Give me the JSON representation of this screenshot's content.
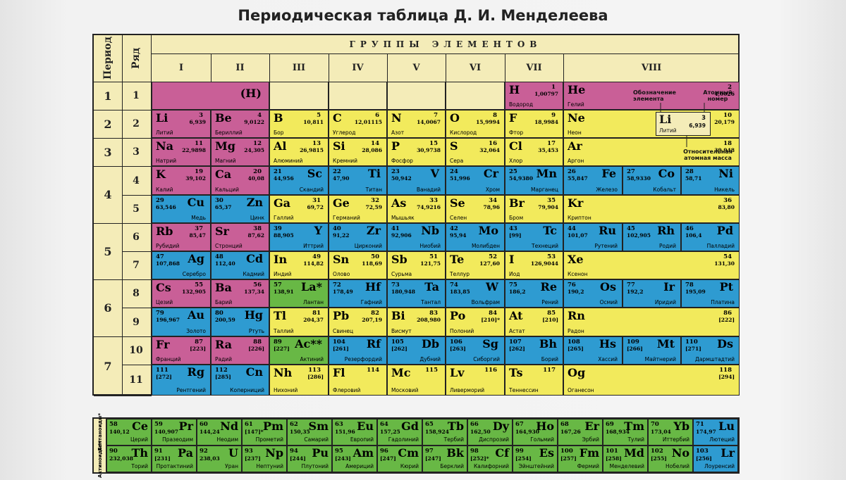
{
  "title": "Периодическая таблица Д. И. Менделеева",
  "headers": {
    "period": "Период",
    "row": "Ряд",
    "groups_title": "ГРУППЫ ЭЛЕМЕНТОВ",
    "groups": [
      "I",
      "II",
      "III",
      "IV",
      "V",
      "VI",
      "VII",
      "VIII"
    ]
  },
  "periods": [
    "1",
    "2",
    "3",
    "4",
    "5",
    "6",
    "7"
  ],
  "rows": [
    "1",
    "2",
    "3",
    "4",
    "5",
    "6",
    "7",
    "8",
    "9",
    "10",
    "11"
  ],
  "elements": [
    [
      {
        "sym": "(H)",
        "num": "",
        "mass": "",
        "name": "",
        "cat": "s",
        "al": "R"
      },
      {
        "sym": "",
        "num": "",
        "mass": "",
        "name": "",
        "cat": "e",
        "al": "L"
      },
      {
        "sym": "",
        "num": "",
        "mass": "",
        "name": "",
        "cat": "e",
        "al": "L"
      },
      {
        "sym": "",
        "num": "",
        "mass": "",
        "name": "",
        "cat": "e",
        "al": "L"
      },
      {
        "sym": "",
        "num": "",
        "mass": "",
        "name": "",
        "cat": "e",
        "al": "L"
      },
      {
        "sym": "",
        "num": "",
        "mass": "",
        "name": "",
        "cat": "e",
        "al": "L"
      },
      {
        "sym": "H",
        "num": "1",
        "mass": "1,00797",
        "name": "Водород",
        "cat": "s",
        "al": "L"
      },
      {
        "sym": "He",
        "num": "2",
        "mass": "4,0026",
        "name": "Гелий",
        "cat": "s",
        "al": "L"
      }
    ],
    [
      {
        "sym": "Li",
        "num": "3",
        "mass": "6,939",
        "name": "Литий",
        "cat": "s",
        "al": "L"
      },
      {
        "sym": "Be",
        "num": "4",
        "mass": "9,0122",
        "name": "Бериллий",
        "cat": "s",
        "al": "L"
      },
      {
        "sym": "B",
        "num": "5",
        "mass": "10,811",
        "name": "Бор",
        "cat": "p",
        "al": "L"
      },
      {
        "sym": "C",
        "num": "6",
        "mass": "12,01115",
        "name": "Углерод",
        "cat": "p",
        "al": "L"
      },
      {
        "sym": "N",
        "num": "7",
        "mass": "14,0067",
        "name": "Азот",
        "cat": "p",
        "al": "L"
      },
      {
        "sym": "O",
        "num": "8",
        "mass": "15,9994",
        "name": "Кислород",
        "cat": "p",
        "al": "L"
      },
      {
        "sym": "F",
        "num": "9",
        "mass": "18,9984",
        "name": "Фтор",
        "cat": "p",
        "al": "L"
      },
      {
        "sym": "Ne",
        "num": "10",
        "mass": "20,179",
        "name": "Неон",
        "cat": "p",
        "al": "L"
      }
    ],
    [
      {
        "sym": "Na",
        "num": "11",
        "mass": "22,9898",
        "name": "Натрий",
        "cat": "s",
        "al": "L"
      },
      {
        "sym": "Mg",
        "num": "12",
        "mass": "24,305",
        "name": "Магний",
        "cat": "s",
        "al": "L"
      },
      {
        "sym": "Al",
        "num": "13",
        "mass": "26,9815",
        "name": "Алюминий",
        "cat": "p",
        "al": "L"
      },
      {
        "sym": "Si",
        "num": "14",
        "mass": "28,086",
        "name": "Кремний",
        "cat": "p",
        "al": "L"
      },
      {
        "sym": "P",
        "num": "15",
        "mass": "30,9738",
        "name": "Фосфор",
        "cat": "p",
        "al": "L"
      },
      {
        "sym": "S",
        "num": "16",
        "mass": "32,064",
        "name": "Сера",
        "cat": "p",
        "al": "L"
      },
      {
        "sym": "Cl",
        "num": "17",
        "mass": "35,453",
        "name": "Хлор",
        "cat": "p",
        "al": "L"
      },
      {
        "sym": "Ar",
        "num": "18",
        "mass": "39,948",
        "name": "Аргон",
        "cat": "p",
        "al": "L"
      }
    ],
    [
      {
        "sym": "K",
        "num": "19",
        "mass": "39,102",
        "name": "Калий",
        "cat": "s",
        "al": "L"
      },
      {
        "sym": "Ca",
        "num": "20",
        "mass": "40,08",
        "name": "Кальций",
        "cat": "s",
        "al": "L"
      },
      {
        "sym": "Sc",
        "num": "21",
        "mass": "44,956",
        "name": "Скандий",
        "cat": "d",
        "al": "R"
      },
      {
        "sym": "Ti",
        "num": "22",
        "mass": "47,90",
        "name": "Титан",
        "cat": "d",
        "al": "R"
      },
      {
        "sym": "V",
        "num": "23",
        "mass": "50,942",
        "name": "Ванадий",
        "cat": "d",
        "al": "R"
      },
      {
        "sym": "Cr",
        "num": "24",
        "mass": "51,996",
        "name": "Хром",
        "cat": "d",
        "al": "R"
      },
      {
        "sym": "Mn",
        "num": "25",
        "mass": "54,9380",
        "name": "Марганец",
        "cat": "d",
        "al": "R"
      },
      {
        "sym": "Fe",
        "num": "26",
        "mass": "55,847",
        "name": "Железо",
        "cat": "d",
        "al": "R"
      },
      {
        "sym": "Co",
        "num": "27",
        "mass": "58,9330",
        "name": "Кобальт",
        "cat": "d",
        "al": "R"
      },
      {
        "sym": "Ni",
        "num": "28",
        "mass": "58,71",
        "name": "Никель",
        "cat": "d",
        "al": "R"
      }
    ],
    [
      {
        "sym": "Cu",
        "num": "29",
        "mass": "63,546",
        "name": "Медь",
        "cat": "d",
        "al": "R"
      },
      {
        "sym": "Zn",
        "num": "30",
        "mass": "65,37",
        "name": "Цинк",
        "cat": "d",
        "al": "R"
      },
      {
        "sym": "Ga",
        "num": "31",
        "mass": "69,72",
        "name": "Галлий",
        "cat": "p",
        "al": "L"
      },
      {
        "sym": "Ge",
        "num": "32",
        "mass": "72,59",
        "name": "Германий",
        "cat": "p",
        "al": "L"
      },
      {
        "sym": "As",
        "num": "33",
        "mass": "74,9216",
        "name": "Мышьяк",
        "cat": "p",
        "al": "L"
      },
      {
        "sym": "Se",
        "num": "34",
        "mass": "78,96",
        "name": "Селен",
        "cat": "p",
        "al": "L"
      },
      {
        "sym": "Br",
        "num": "35",
        "mass": "79,904",
        "name": "Бром",
        "cat": "p",
        "al": "L"
      },
      {
        "sym": "Kr",
        "num": "36",
        "mass": "83,80",
        "name": "Криптон",
        "cat": "p",
        "al": "L"
      }
    ],
    [
      {
        "sym": "Rb",
        "num": "37",
        "mass": "85,47",
        "name": "Рубидий",
        "cat": "s",
        "al": "L"
      },
      {
        "sym": "Sr",
        "num": "38",
        "mass": "87,62",
        "name": "Стронций",
        "cat": "s",
        "al": "L"
      },
      {
        "sym": "Y",
        "num": "39",
        "mass": "88,905",
        "name": "Иттрий",
        "cat": "d",
        "al": "R"
      },
      {
        "sym": "Zr",
        "num": "40",
        "mass": "91,22",
        "name": "Цирконий",
        "cat": "d",
        "al": "R"
      },
      {
        "sym": "Nb",
        "num": "41",
        "mass": "92,906",
        "name": "Ниобий",
        "cat": "d",
        "al": "R"
      },
      {
        "sym": "Mo",
        "num": "42",
        "mass": "95,94",
        "name": "Молибден",
        "cat": "d",
        "al": "R"
      },
      {
        "sym": "Tc",
        "num": "43",
        "mass": "[99]",
        "name": "Технеций",
        "cat": "d",
        "al": "R"
      },
      {
        "sym": "Ru",
        "num": "44",
        "mass": "101,07",
        "name": "Рутений",
        "cat": "d",
        "al": "R"
      },
      {
        "sym": "Rh",
        "num": "45",
        "mass": "102,905",
        "name": "Родий",
        "cat": "d",
        "al": "R"
      },
      {
        "sym": "Pd",
        "num": "46",
        "mass": "106,4",
        "name": "Палладий",
        "cat": "d",
        "al": "R"
      }
    ],
    [
      {
        "sym": "Ag",
        "num": "47",
        "mass": "107,868",
        "name": "Серебро",
        "cat": "d",
        "al": "R"
      },
      {
        "sym": "Cd",
        "num": "48",
        "mass": "112,40",
        "name": "Кадмий",
        "cat": "d",
        "al": "R"
      },
      {
        "sym": "In",
        "num": "49",
        "mass": "114,82",
        "name": "Индий",
        "cat": "p",
        "al": "L"
      },
      {
        "sym": "Sn",
        "num": "50",
        "mass": "118,69",
        "name": "Олово",
        "cat": "p",
        "al": "L"
      },
      {
        "sym": "Sb",
        "num": "51",
        "mass": "121,75",
        "name": "Сурьма",
        "cat": "p",
        "al": "L"
      },
      {
        "sym": "Te",
        "num": "52",
        "mass": "127,60",
        "name": "Теллур",
        "cat": "p",
        "al": "L"
      },
      {
        "sym": "I",
        "num": "53",
        "mass": "126,9044",
        "name": "Иод",
        "cat": "p",
        "al": "L"
      },
      {
        "sym": "Xe",
        "num": "54",
        "mass": "131,30",
        "name": "Ксенон",
        "cat": "p",
        "al": "L"
      }
    ],
    [
      {
        "sym": "Cs",
        "num": "55",
        "mass": "132,905",
        "name": "Цезий",
        "cat": "s",
        "al": "L"
      },
      {
        "sym": "Ba",
        "num": "56",
        "mass": "137,34",
        "name": "Барий",
        "cat": "s",
        "al": "L"
      },
      {
        "sym": "La*",
        "num": "57",
        "mass": "138,91",
        "name": "Лантан",
        "cat": "f",
        "al": "R"
      },
      {
        "sym": "Hf",
        "num": "72",
        "mass": "178,49",
        "name": "Гафний",
        "cat": "d",
        "al": "R"
      },
      {
        "sym": "Ta",
        "num": "73",
        "mass": "180,948",
        "name": "Тантал",
        "cat": "d",
        "al": "R"
      },
      {
        "sym": "W",
        "num": "74",
        "mass": "183,85",
        "name": "Вольфрам",
        "cat": "d",
        "al": "R"
      },
      {
        "sym": "Re",
        "num": "75",
        "mass": "186,2",
        "name": "Рений",
        "cat": "d",
        "al": "R"
      },
      {
        "sym": "Os",
        "num": "76",
        "mass": "190,2",
        "name": "Осмий",
        "cat": "d",
        "al": "R"
      },
      {
        "sym": "Ir",
        "num": "77",
        "mass": "192,2",
        "name": "Иридий",
        "cat": "d",
        "al": "R"
      },
      {
        "sym": "Pt",
        "num": "78",
        "mass": "195,09",
        "name": "Платина",
        "cat": "d",
        "al": "R"
      }
    ],
    [
      {
        "sym": "Au",
        "num": "79",
        "mass": "196,967",
        "name": "Золото",
        "cat": "d",
        "al": "R"
      },
      {
        "sym": "Hg",
        "num": "80",
        "mass": "200,59",
        "name": "Ртуть",
        "cat": "d",
        "al": "R"
      },
      {
        "sym": "Tl",
        "num": "81",
        "mass": "204,37",
        "name": "Таллий",
        "cat": "p",
        "al": "L"
      },
      {
        "sym": "Pb",
        "num": "82",
        "mass": "207,19",
        "name": "Свинец",
        "cat": "p",
        "al": "L"
      },
      {
        "sym": "Bi",
        "num": "83",
        "mass": "208,980",
        "name": "Висмут",
        "cat": "p",
        "al": "L"
      },
      {
        "sym": "Po",
        "num": "84",
        "mass": "[210]*",
        "name": "Полоний",
        "cat": "p",
        "al": "L"
      },
      {
        "sym": "At",
        "num": "85",
        "mass": "[210]",
        "name": "Астат",
        "cat": "p",
        "al": "L"
      },
      {
        "sym": "Rn",
        "num": "86",
        "mass": "[222]",
        "name": "Радон",
        "cat": "p",
        "al": "L"
      }
    ],
    [
      {
        "sym": "Fr",
        "num": "87",
        "mass": "[223]",
        "name": "Франций",
        "cat": "s",
        "al": "L"
      },
      {
        "sym": "Ra",
        "num": "88",
        "mass": "[226]",
        "name": "Радий",
        "cat": "s",
        "al": "L"
      },
      {
        "sym": "Ac**",
        "num": "89",
        "mass": "[227]",
        "name": "Актиний",
        "cat": "f",
        "al": "R"
      },
      {
        "sym": "Rf",
        "num": "104",
        "mass": "[261]",
        "name": "Резерфордий",
        "cat": "d",
        "al": "R"
      },
      {
        "sym": "Db",
        "num": "105",
        "mass": "[262]",
        "name": "Дубний",
        "cat": "d",
        "al": "R"
      },
      {
        "sym": "Sg",
        "num": "106",
        "mass": "[263]",
        "name": "Сиборгий",
        "cat": "d",
        "al": "R"
      },
      {
        "sym": "Bh",
        "num": "107",
        "mass": "[262]",
        "name": "Борий",
        "cat": "d",
        "al": "R"
      },
      {
        "sym": "Hs",
        "num": "108",
        "mass": "[265]",
        "name": "Хассий",
        "cat": "d",
        "al": "R"
      },
      {
        "sym": "Mt",
        "num": "109",
        "mass": "[266]",
        "name": "Майтнерий",
        "cat": "d",
        "al": "R"
      },
      {
        "sym": "Ds",
        "num": "110",
        "mass": "[271]",
        "name": "Дармштадтий",
        "cat": "d",
        "al": "R"
      }
    ],
    [
      {
        "sym": "Rg",
        "num": "111",
        "mass": "[272]",
        "name": "Рентгений",
        "cat": "d",
        "al": "R"
      },
      {
        "sym": "Cn",
        "num": "112",
        "mass": "[285]",
        "name": "Коперниций",
        "cat": "d",
        "al": "R"
      },
      {
        "sym": "Nh",
        "num": "113",
        "mass": "[286]",
        "name": "Нихоний",
        "cat": "p",
        "al": "L"
      },
      {
        "sym": "Fl",
        "num": "114",
        "mass": "",
        "name": "Флеровий",
        "cat": "p",
        "al": "L"
      },
      {
        "sym": "Mc",
        "num": "115",
        "mass": "",
        "name": "Московий",
        "cat": "p",
        "al": "L"
      },
      {
        "sym": "Lv",
        "num": "116",
        "mass": "",
        "name": "Ливерморий",
        "cat": "p",
        "al": "L"
      },
      {
        "sym": "Ts",
        "num": "117",
        "mass": "",
        "name": "Теннессин",
        "cat": "p",
        "al": "L"
      },
      {
        "sym": "Og",
        "num": "118",
        "mass": "[294]",
        "name": "Оганесон",
        "cat": "p",
        "al": "L"
      }
    ]
  ],
  "legend": {
    "designation_label": "Обозначение элемента",
    "atomic_number_label": "Атомный номер",
    "relative_mass_label": "Относительная атомная масса",
    "example": {
      "sym": "Li",
      "num": "3",
      "mass": "6,939",
      "name": "Литий"
    }
  },
  "lanthanides": {
    "label": "Лантаноиды*",
    "elements": [
      {
        "sym": "Ce",
        "num": "58",
        "mass": "140,12",
        "name": "Церий",
        "cat": "f"
      },
      {
        "sym": "Pr",
        "num": "59",
        "mass": "140,907",
        "name": "Празеодим",
        "cat": "f"
      },
      {
        "sym": "Nd",
        "num": "60",
        "mass": "144,24",
        "name": "Неодим",
        "cat": "f"
      },
      {
        "sym": "Pm",
        "num": "61",
        "mass": "[147]*",
        "name": "Прометий",
        "cat": "f"
      },
      {
        "sym": "Sm",
        "num": "62",
        "mass": "150,35",
        "name": "Самарий",
        "cat": "f"
      },
      {
        "sym": "Eu",
        "num": "63",
        "mass": "151,96",
        "name": "Европий",
        "cat": "f"
      },
      {
        "sym": "Gd",
        "num": "64",
        "mass": "157,25",
        "name": "Гадолиний",
        "cat": "f"
      },
      {
        "sym": "Tb",
        "num": "65",
        "mass": "158,924",
        "name": "Тербий",
        "cat": "f"
      },
      {
        "sym": "Dy",
        "num": "66",
        "mass": "162,50",
        "name": "Диспрозий",
        "cat": "f"
      },
      {
        "sym": "Ho",
        "num": "67",
        "mass": "164,930",
        "name": "Гольмий",
        "cat": "f"
      },
      {
        "sym": "Er",
        "num": "68",
        "mass": "167,26",
        "name": "Эрбий",
        "cat": "f"
      },
      {
        "sym": "Tm",
        "num": "69",
        "mass": "168,934",
        "name": "Тулий",
        "cat": "f"
      },
      {
        "sym": "Yb",
        "num": "70",
        "mass": "173,04",
        "name": "Иттербий",
        "cat": "f"
      },
      {
        "sym": "Lu",
        "num": "71",
        "mass": "174,97",
        "name": "Лютеций",
        "cat": "d"
      }
    ]
  },
  "actinides": {
    "label": "Актиноиды**",
    "elements": [
      {
        "sym": "Th",
        "num": "90",
        "mass": "232,038",
        "name": "Торий",
        "cat": "f"
      },
      {
        "sym": "Pa",
        "num": "91",
        "mass": "[231]",
        "name": "Протактиний",
        "cat": "f"
      },
      {
        "sym": "U",
        "num": "92",
        "mass": "238,03",
        "name": "Уран",
        "cat": "f"
      },
      {
        "sym": "Np",
        "num": "93",
        "mass": "[237]",
        "name": "Нептуний",
        "cat": "f"
      },
      {
        "sym": "Pu",
        "num": "94",
        "mass": "[244]",
        "name": "Плутоний",
        "cat": "f"
      },
      {
        "sym": "Am",
        "num": "95",
        "mass": "[243]",
        "name": "Америций",
        "cat": "f"
      },
      {
        "sym": "Cm",
        "num": "96",
        "mass": "[247]",
        "name": "Кюрий",
        "cat": "f"
      },
      {
        "sym": "Bk",
        "num": "97",
        "mass": "[247]",
        "name": "Берклий",
        "cat": "f"
      },
      {
        "sym": "Cf",
        "num": "98",
        "mass": "[252]*",
        "name": "Калифорний",
        "cat": "f"
      },
      {
        "sym": "Es",
        "num": "99",
        "mass": "[254]",
        "name": "Эйнштейний",
        "cat": "f"
      },
      {
        "sym": "Fm",
        "num": "100",
        "mass": "[257]",
        "name": "Фермий",
        "cat": "f"
      },
      {
        "sym": "Md",
        "num": "101",
        "mass": "[258]",
        "name": "Менделевий",
        "cat": "f"
      },
      {
        "sym": "No",
        "num": "102",
        "mass": "[255]",
        "name": "Нобелий",
        "cat": "f"
      },
      {
        "sym": "Lr",
        "num": "103",
        "mass": "[256]",
        "name": "Лоуренсий",
        "cat": "d"
      }
    ]
  },
  "colors": {
    "s_block": "#c95f97",
    "p_block": "#f2ea5c",
    "d_block": "#2e9bd1",
    "f_block": "#68b845",
    "background": "#f4ecb8"
  }
}
